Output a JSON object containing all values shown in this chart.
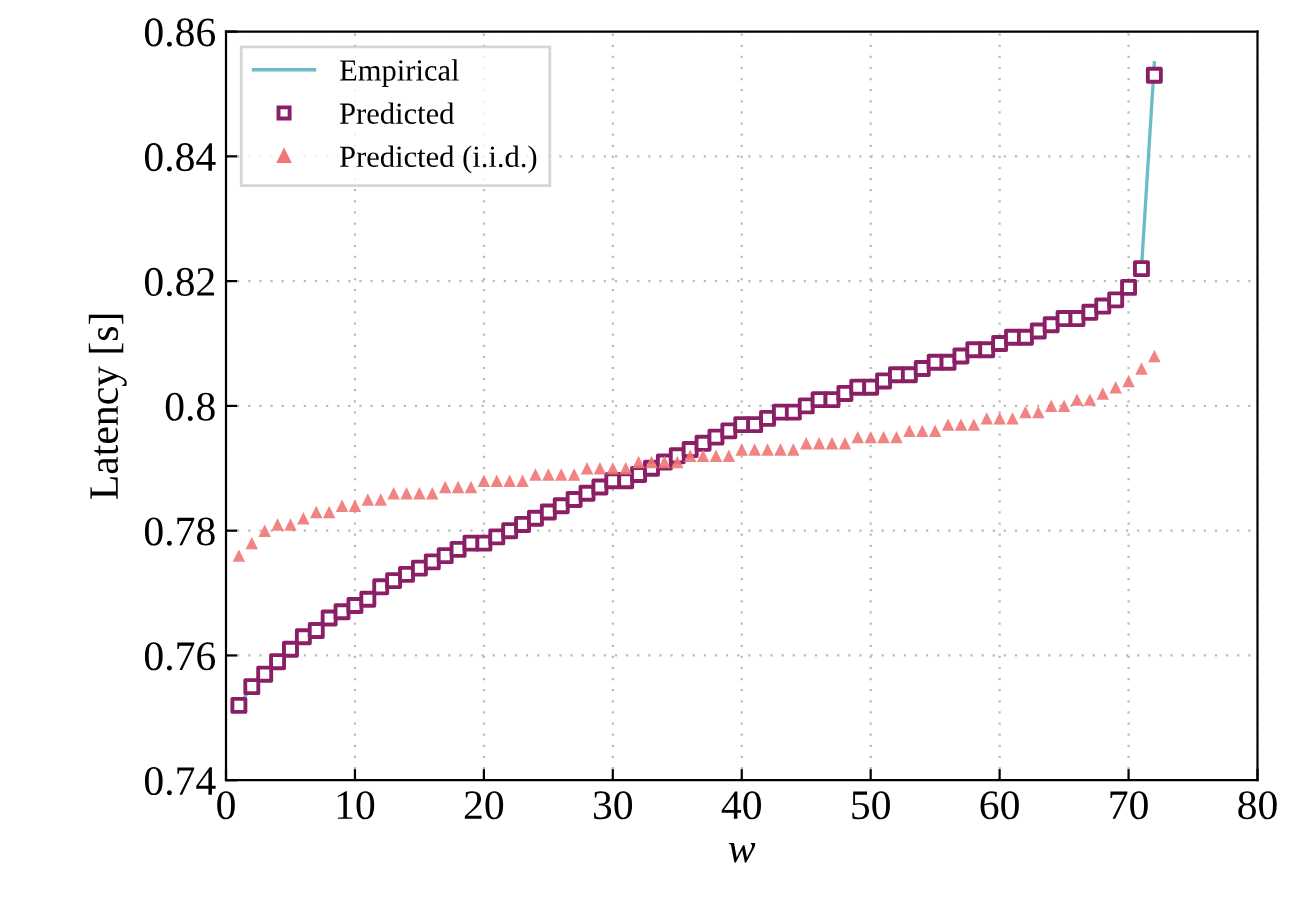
{
  "chart_data": {
    "type": "line",
    "xlabel": "w",
    "ylabel": "Latency [s]",
    "xlim": [
      0,
      80
    ],
    "xticks": [
      0,
      10,
      20,
      30,
      40,
      50,
      60,
      70,
      80
    ],
    "ylim": [
      0.74,
      0.86
    ],
    "yticks": [
      {
        "value": 0.74,
        "label": "0.74"
      },
      {
        "value": 0.76,
        "label": "0.76"
      },
      {
        "value": 0.78,
        "label": "0.78"
      },
      {
        "value": 0.8,
        "label": "0.8"
      },
      {
        "value": 0.82,
        "label": "0.82"
      },
      {
        "value": 0.84,
        "label": "0.84"
      },
      {
        "value": 0.86,
        "label": "0.86"
      }
    ],
    "x": [
      1,
      2,
      3,
      4,
      5,
      6,
      7,
      8,
      9,
      10,
      11,
      12,
      13,
      14,
      15,
      16,
      17,
      18,
      19,
      20,
      21,
      22,
      23,
      24,
      25,
      26,
      27,
      28,
      29,
      30,
      31,
      32,
      33,
      34,
      35,
      36,
      37,
      38,
      39,
      40,
      41,
      42,
      43,
      44,
      45,
      46,
      47,
      48,
      49,
      50,
      51,
      52,
      53,
      54,
      55,
      56,
      57,
      58,
      59,
      60,
      61,
      62,
      63,
      64,
      65,
      66,
      67,
      68,
      69,
      70,
      71,
      72
    ],
    "grid": true,
    "legend": "top left",
    "series": [
      {
        "name": "Empirical",
        "marker": "none",
        "line_style": "solid",
        "color": "#6bbcc6",
        "values": [
          0.752,
          0.755,
          null,
          null,
          null,
          null,
          null,
          null,
          null,
          null,
          null,
          null,
          null,
          null,
          null,
          null,
          null,
          null,
          null,
          null,
          null,
          null,
          null,
          null,
          null,
          null,
          null,
          null,
          null,
          null,
          null,
          null,
          null,
          null,
          null,
          null,
          null,
          null,
          null,
          null,
          null,
          null,
          null,
          null,
          null,
          null,
          null,
          null,
          null,
          null,
          null,
          null,
          null,
          null,
          null,
          null,
          null,
          null,
          null,
          null,
          null,
          null,
          null,
          null,
          null,
          null,
          null,
          null,
          null,
          null,
          0.822,
          0.855
        ]
      },
      {
        "name": "Predicted",
        "type": "scatter",
        "marker": "square",
        "color": "#8b1f65",
        "values": [
          0.752,
          0.755,
          0.757,
          0.759,
          0.761,
          0.763,
          0.764,
          0.766,
          0.767,
          0.768,
          0.769,
          0.771,
          0.772,
          0.773,
          0.774,
          0.775,
          0.776,
          0.777,
          0.778,
          0.778,
          0.779,
          0.78,
          0.781,
          0.782,
          0.783,
          0.784,
          0.785,
          0.786,
          0.787,
          0.788,
          0.788,
          0.789,
          0.79,
          0.791,
          0.792,
          0.793,
          0.794,
          0.795,
          0.796,
          0.797,
          0.797,
          0.798,
          0.799,
          0.799,
          0.8,
          0.801,
          0.801,
          0.802,
          0.803,
          0.803,
          0.804,
          0.805,
          0.805,
          0.806,
          0.807,
          0.807,
          0.808,
          0.809,
          0.809,
          0.81,
          0.811,
          0.811,
          0.812,
          0.813,
          0.814,
          0.814,
          0.815,
          0.816,
          0.817,
          0.819,
          0.822,
          0.853
        ]
      },
      {
        "name": "Predicted (i.i.d.)",
        "type": "scatter",
        "marker": "triangle",
        "color": "#f07676",
        "values": [
          0.776,
          0.778,
          0.78,
          0.781,
          0.781,
          0.782,
          0.783,
          0.783,
          0.784,
          0.784,
          0.785,
          0.785,
          0.786,
          0.786,
          0.786,
          0.786,
          0.787,
          0.787,
          0.787,
          0.788,
          0.788,
          0.788,
          0.788,
          0.789,
          0.789,
          0.789,
          0.789,
          0.79,
          0.79,
          0.79,
          0.79,
          0.791,
          0.791,
          0.791,
          0.791,
          0.792,
          0.792,
          0.792,
          0.792,
          0.793,
          0.793,
          0.793,
          0.793,
          0.793,
          0.794,
          0.794,
          0.794,
          0.794,
          0.795,
          0.795,
          0.795,
          0.795,
          0.796,
          0.796,
          0.796,
          0.797,
          0.797,
          0.797,
          0.798,
          0.798,
          0.798,
          0.799,
          0.799,
          0.8,
          0.8,
          0.801,
          0.801,
          0.802,
          0.803,
          0.804,
          0.806,
          0.808
        ]
      }
    ]
  }
}
